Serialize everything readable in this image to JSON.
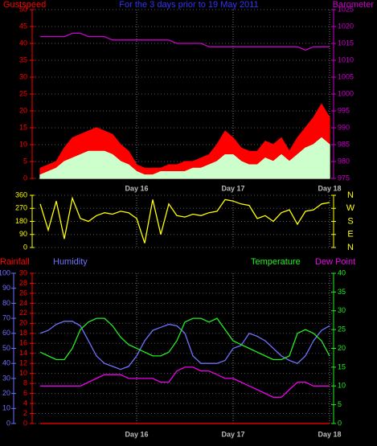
{
  "chart_data": [
    {
      "type": "line",
      "title": "For the 3 days prior to 19 May 2011",
      "x": [
        0,
        2,
        4,
        6,
        8,
        10,
        12,
        14,
        16,
        18,
        20,
        22,
        24,
        26,
        28,
        30,
        32,
        34,
        36,
        38,
        40,
        42,
        44,
        46,
        48,
        50,
        52,
        54,
        56,
        58,
        60,
        62,
        64,
        66,
        68,
        70,
        72
      ],
      "xlim": [
        -2,
        73
      ],
      "xticks": [
        {
          "value": 24,
          "label": "Day 16"
        },
        {
          "value": 48,
          "label": "Day 17"
        },
        {
          "value": 72,
          "label": "Day 18"
        }
      ],
      "ylim": [
        0,
        50
      ],
      "yticks": [
        0,
        5,
        10,
        15,
        20,
        25,
        30,
        35,
        40,
        45,
        50
      ],
      "y2lim": [
        975,
        1025
      ],
      "y2ticks": [
        975,
        980,
        985,
        990,
        995,
        1000,
        1005,
        1010,
        1015,
        1020,
        1025
      ],
      "grid": true,
      "series": [
        {
          "name": "Gustspeed",
          "color": "#ff0000",
          "fill": true,
          "values": [
            3,
            4,
            5,
            9,
            12,
            13,
            14,
            15,
            14,
            13,
            10,
            8,
            4,
            3,
            3,
            3,
            4,
            4,
            5,
            5,
            6,
            7,
            10,
            14,
            12,
            9,
            8,
            8,
            11,
            10,
            12,
            8,
            12,
            15,
            18,
            22,
            18
          ]
        },
        {
          "color": "#ccffcc",
          "fill": true,
          "values": [
            1,
            2,
            3,
            5,
            6,
            7,
            8,
            8,
            8,
            7,
            5,
            4,
            2,
            1,
            1,
            2,
            2,
            2,
            2,
            3,
            3,
            4,
            5,
            7,
            7,
            5,
            4,
            4,
            6,
            5,
            7,
            5,
            7,
            9,
            10,
            12,
            10
          ]
        },
        {
          "name": "Barometer",
          "color": "#cc00cc",
          "axis": "y2",
          "values": [
            1017,
            1017,
            1017,
            1017,
            1018,
            1018,
            1017,
            1017,
            1017,
            1016,
            1016,
            1016,
            1016,
            1016,
            1016,
            1016,
            1016,
            1015,
            1015,
            1015,
            1015,
            1014,
            1014,
            1014,
            1014,
            1014,
            1014,
            1014,
            1014,
            1014,
            1014,
            1014,
            1014,
            1013,
            1014,
            1014,
            1014
          ]
        }
      ]
    },
    {
      "type": "line",
      "x": [
        0,
        2,
        4,
        6,
        8,
        10,
        12,
        14,
        16,
        18,
        20,
        22,
        24,
        26,
        28,
        30,
        32,
        34,
        36,
        38,
        40,
        42,
        44,
        46,
        48,
        50,
        52,
        54,
        56,
        58,
        60,
        62,
        64,
        66,
        68,
        70,
        72
      ],
      "xlim": [
        -2,
        73
      ],
      "xticks": [
        24,
        48,
        72
      ],
      "show_xtick_labels": false,
      "ylim": [
        0,
        360
      ],
      "yticks": [
        0,
        90,
        180,
        270,
        360
      ],
      "y2lim": [
        0,
        360
      ],
      "y2ticks": [
        {
          "value": 360,
          "label": "N"
        },
        {
          "value": 270,
          "label": "W"
        },
        {
          "value": 180,
          "label": "S"
        },
        {
          "value": 90,
          "label": "E"
        },
        {
          "value": 0,
          "label": "N"
        }
      ],
      "grid": true,
      "series": [
        {
          "color": "#ffff00",
          "values": [
            300,
            120,
            320,
            60,
            340,
            200,
            180,
            220,
            240,
            230,
            250,
            240,
            200,
            30,
            330,
            90,
            300,
            220,
            210,
            230,
            220,
            240,
            250,
            330,
            320,
            300,
            290,
            200,
            220,
            180,
            240,
            260,
            160,
            250,
            260,
            300,
            310
          ]
        }
      ]
    },
    {
      "type": "line",
      "x": [
        0,
        2,
        4,
        6,
        8,
        10,
        12,
        14,
        16,
        18,
        20,
        22,
        24,
        26,
        28,
        30,
        32,
        34,
        36,
        38,
        40,
        42,
        44,
        46,
        48,
        50,
        52,
        54,
        56,
        58,
        60,
        62,
        64,
        66,
        68,
        70,
        72
      ],
      "xlim": [
        -2,
        73
      ],
      "xticks": [
        {
          "value": 24,
          "label": "Day 16"
        },
        {
          "value": 48,
          "label": "Day 17"
        },
        {
          "value": 72,
          "label": "Day 18"
        }
      ],
      "ylim": [
        0,
        30
      ],
      "yticks": [
        0,
        2,
        4,
        6,
        8,
        10,
        12,
        14,
        16,
        18,
        20,
        22,
        24,
        26,
        28,
        30
      ],
      "y2lim": [
        0,
        40
      ],
      "y2ticks": [
        0,
        5,
        10,
        15,
        20,
        25,
        30,
        35,
        40
      ],
      "y3lim": [
        0,
        100
      ],
      "y3ticks": [
        0,
        10,
        20,
        30,
        40,
        50,
        60,
        70,
        80,
        90,
        100
      ],
      "grid": true,
      "series": [
        {
          "name": "Rainfall",
          "color": "#ff0000",
          "values": [
            0,
            0,
            0,
            0,
            0,
            0,
            0,
            0,
            0,
            0,
            0,
            0,
            0,
            0,
            0,
            0,
            0,
            0,
            0,
            0,
            0,
            0,
            0,
            0,
            0,
            0,
            0,
            0,
            0,
            0,
            0,
            0,
            0,
            0,
            0,
            0,
            0
          ]
        },
        {
          "name": "Humidity",
          "color": "#7070ff",
          "axis": "y3",
          "values": [
            60,
            62,
            66,
            68,
            68,
            65,
            55,
            45,
            40,
            38,
            36,
            38,
            45,
            55,
            62,
            64,
            66,
            65,
            60,
            45,
            40,
            40,
            40,
            42,
            50,
            52,
            60,
            58,
            55,
            50,
            45,
            42,
            40,
            45,
            55,
            62,
            65
          ]
        },
        {
          "name": "Temperature",
          "color": "#22ee22",
          "axis": "y2",
          "values": [
            19,
            18,
            17,
            17,
            20,
            25,
            27,
            28,
            28,
            26,
            23,
            21,
            20,
            19,
            18,
            18,
            19,
            22,
            27,
            28,
            28,
            27,
            28,
            25,
            22,
            21,
            20,
            19,
            18,
            17,
            17,
            18,
            24,
            25,
            24,
            22,
            18
          ]
        },
        {
          "name": "Dew Point",
          "color": "#ee00ee",
          "axis": "y2",
          "values": [
            10,
            10,
            10,
            10,
            10,
            10,
            11,
            12,
            13,
            13,
            13,
            12,
            12,
            12,
            12,
            11,
            11,
            14,
            15,
            15,
            14,
            14,
            13,
            12,
            12,
            11,
            10,
            9,
            8,
            7,
            7,
            9,
            11,
            11,
            10,
            10,
            10
          ]
        }
      ]
    }
  ]
}
